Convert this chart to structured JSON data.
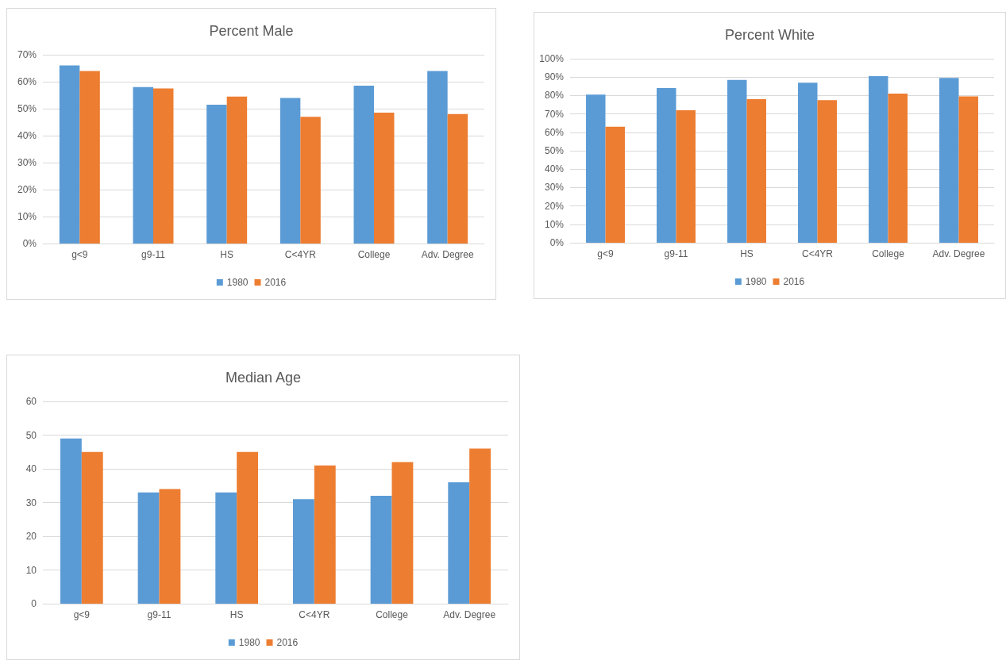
{
  "chart_data": [
    {
      "type": "bar",
      "title": "Percent Male",
      "categories": [
        "g<9",
        "g9-11",
        "HS",
        "C<4YR",
        "College",
        "Adv. Degree"
      ],
      "series": [
        {
          "name": "1980",
          "color": "#5b9bd5",
          "values": [
            66,
            58,
            51.5,
            54,
            58.5,
            64
          ]
        },
        {
          "name": "2016",
          "color": "#ed7d31",
          "values": [
            64,
            57.5,
            54.5,
            47,
            48.5,
            48
          ]
        }
      ],
      "ylim": [
        0,
        70
      ],
      "yticks": [
        {
          "value": 0,
          "label": "0%"
        },
        {
          "value": 10,
          "label": "10%"
        },
        {
          "value": 20,
          "label": "20%"
        },
        {
          "value": 30,
          "label": "30%"
        },
        {
          "value": 40,
          "label": "40%"
        },
        {
          "value": 50,
          "label": "50%"
        },
        {
          "value": 60,
          "label": "60%"
        },
        {
          "value": 70,
          "label": "70%"
        }
      ],
      "grid": "y",
      "legend": "bottom"
    },
    {
      "type": "bar",
      "title": "Percent White",
      "categories": [
        "g<9",
        "g9-11",
        "HS",
        "C<4YR",
        "College",
        "Adv. Degree"
      ],
      "series": [
        {
          "name": "1980",
          "color": "#5b9bd5",
          "values": [
            80.5,
            84,
            88.5,
            87,
            90.5,
            89.5
          ]
        },
        {
          "name": "2016",
          "color": "#ed7d31",
          "values": [
            63,
            72,
            78,
            77.5,
            81,
            79.5
          ]
        }
      ],
      "ylim": [
        0,
        100
      ],
      "yticks": [
        {
          "value": 0,
          "label": "0%"
        },
        {
          "value": 10,
          "label": "10%"
        },
        {
          "value": 20,
          "label": "20%"
        },
        {
          "value": 30,
          "label": "30%"
        },
        {
          "value": 40,
          "label": "40%"
        },
        {
          "value": 50,
          "label": "50%"
        },
        {
          "value": 60,
          "label": "60%"
        },
        {
          "value": 70,
          "label": "70%"
        },
        {
          "value": 80,
          "label": "80%"
        },
        {
          "value": 90,
          "label": "90%"
        },
        {
          "value": 100,
          "label": "100%"
        }
      ],
      "grid": "y",
      "legend": "bottom"
    },
    {
      "type": "bar",
      "title": "Median Age",
      "categories": [
        "g<9",
        "g9-11",
        "HS",
        "C<4YR",
        "College",
        "Adv. Degree"
      ],
      "series": [
        {
          "name": "1980",
          "color": "#5b9bd5",
          "values": [
            49,
            33,
            33,
            31,
            32,
            36
          ]
        },
        {
          "name": "2016",
          "color": "#ed7d31",
          "values": [
            45,
            34,
            45,
            41,
            42,
            46
          ]
        }
      ],
      "ylim": [
        0,
        60
      ],
      "yticks": [
        0,
        10,
        20,
        30,
        40,
        50,
        60
      ],
      "grid": "y",
      "legend": "bottom"
    }
  ]
}
